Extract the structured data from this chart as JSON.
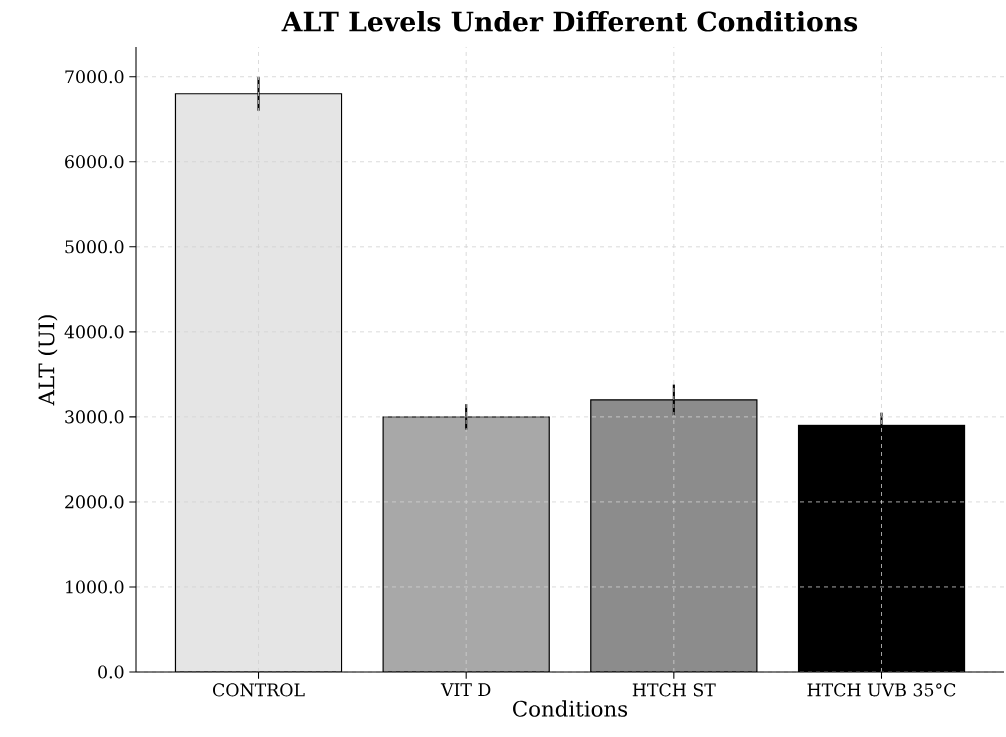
{
  "chart_data": {
    "type": "bar",
    "title": "ALT Levels Under Different Conditions",
    "xlabel": "Conditions",
    "ylabel": "ALT (UI)",
    "categories": [
      "CONTROL",
      "VIT D",
      "HTCH ST",
      "HTCH UVB 35°C"
    ],
    "values": [
      6800,
      3000,
      3200,
      2900
    ],
    "errors": [
      200,
      150,
      180,
      150
    ],
    "colors": [
      "#e5e5e5",
      "#a8a8a8",
      "#8c8c8c",
      "#000000"
    ],
    "ylim": [
      0,
      7350
    ],
    "yticks": [
      {
        "value": 0,
        "label": "0.0"
      },
      {
        "value": 1000,
        "label": "1000.0"
      },
      {
        "value": 2000,
        "label": "2000.0"
      },
      {
        "value": 3000,
        "label": "3000.0"
      },
      {
        "value": 4000,
        "label": "4000.0"
      },
      {
        "value": 5000,
        "label": "5000.0"
      },
      {
        "value": 6000,
        "label": "6000.0"
      },
      {
        "value": 7000,
        "label": "7000.0"
      }
    ],
    "grid": true
  }
}
